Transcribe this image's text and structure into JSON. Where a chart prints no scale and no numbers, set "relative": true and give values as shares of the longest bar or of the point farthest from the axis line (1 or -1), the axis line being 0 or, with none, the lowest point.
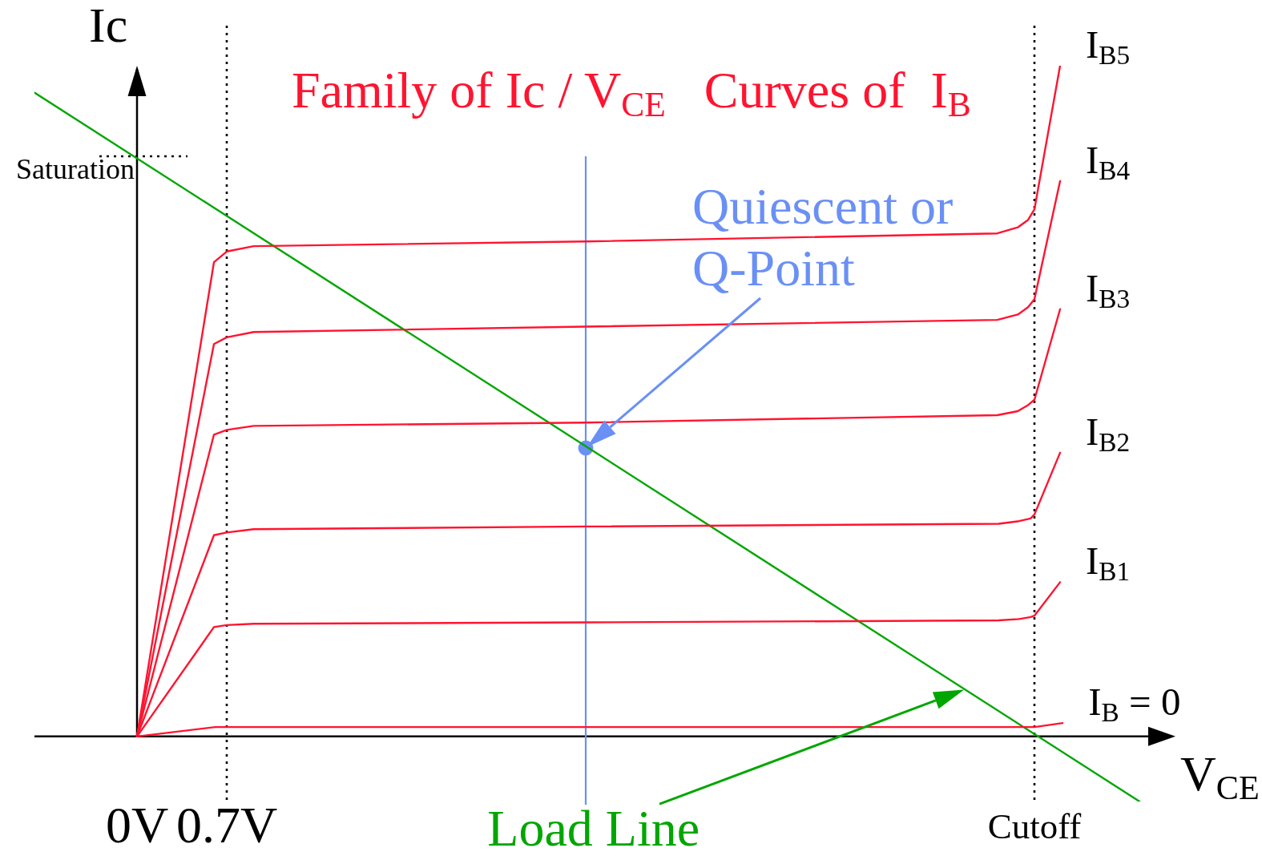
{
  "chart_data": {
    "type": "line",
    "title": "Family of Ic / V$_{CE}$   Curves of  I$_{B}$",
    "xlabel": "V$_{CE}$",
    "ylabel": "Ic",
    "relative": true,
    "xlim": [
      -0.8,
      8.1
    ],
    "xticks": [
      {
        "value": 0,
        "label": "0V"
      },
      {
        "value": 0.7,
        "label": "0.7V"
      }
    ],
    "series": [
      {
        "name": "I$_{B5}$",
        "color": "#ff1430",
        "x": [
          0,
          0.6,
          0.7,
          0.91,
          3.5,
          6.71,
          6.87,
          6.95,
          7.0,
          7.2
        ],
        "values": [
          0,
          0.707,
          0.723,
          0.731,
          0.738,
          0.75,
          0.759,
          0.77,
          0.786,
          1.0
        ]
      },
      {
        "name": "I$_{B4}$",
        "color": "#ff1430",
        "x": [
          0,
          0.6,
          0.7,
          0.91,
          3.5,
          6.71,
          6.87,
          6.95,
          7.0,
          7.2
        ],
        "values": [
          0,
          0.585,
          0.595,
          0.603,
          0.611,
          0.621,
          0.629,
          0.64,
          0.652,
          0.828
        ]
      },
      {
        "name": "I$_{B3}$",
        "color": "#ff1430",
        "x": [
          0,
          0.6,
          0.7,
          0.91,
          3.5,
          6.71,
          6.87,
          6.95,
          7.0,
          7.2
        ],
        "values": [
          0,
          0.45,
          0.457,
          0.463,
          0.468,
          0.479,
          0.485,
          0.494,
          0.502,
          0.637
        ]
      },
      {
        "name": "I$_{B2}$",
        "color": "#ff1430",
        "x": [
          0,
          0.6,
          0.7,
          0.91,
          3.5,
          6.72,
          6.88,
          6.97,
          7.0,
          7.2
        ],
        "values": [
          0,
          0.3,
          0.304,
          0.309,
          0.313,
          0.317,
          0.321,
          0.325,
          0.331,
          0.423
        ]
      },
      {
        "name": "I$_{B1}$",
        "color": "#ff1430",
        "x": [
          0,
          0.6,
          0.7,
          0.91,
          3.5,
          6.72,
          6.88,
          6.97,
          7.0,
          7.2
        ],
        "values": [
          0,
          0.163,
          0.166,
          0.168,
          0.17,
          0.173,
          0.175,
          0.178,
          0.18,
          0.23
        ]
      },
      {
        "name": "I$_{B}$ = 0",
        "color": "#ff1430",
        "x": [
          0,
          0.61,
          7.0,
          7.22
        ],
        "values": [
          0,
          0.014,
          0.014,
          0.02
        ]
      },
      {
        "color": "#00a600",
        "x": [
          -0.8,
          7.82
        ],
        "values": [
          0.96,
          -0.097
        ]
      },
      {
        "type": "scatter",
        "marker": "circle",
        "color": "#6a90f5",
        "x": [
          3.5
        ],
        "values": [
          0.43
        ]
      }
    ],
    "ref_lines": [
      {
        "axis": "x",
        "value": 0.7,
        "line_style": "dotted",
        "color": "#000000"
      },
      {
        "axis": "x",
        "value": 7.0,
        "label": "Cutoff",
        "line_style": "dotted",
        "color": "#000000"
      },
      {
        "axis": "x",
        "value": 3.5,
        "color": "#6a90f5"
      },
      {
        "axis": "y",
        "value": 0.865,
        "label": "Saturation",
        "line_style": "dotted",
        "color": "#000000"
      }
    ],
    "annotations": [
      "Quiescent or Q-Point",
      "Load Line"
    ]
  }
}
